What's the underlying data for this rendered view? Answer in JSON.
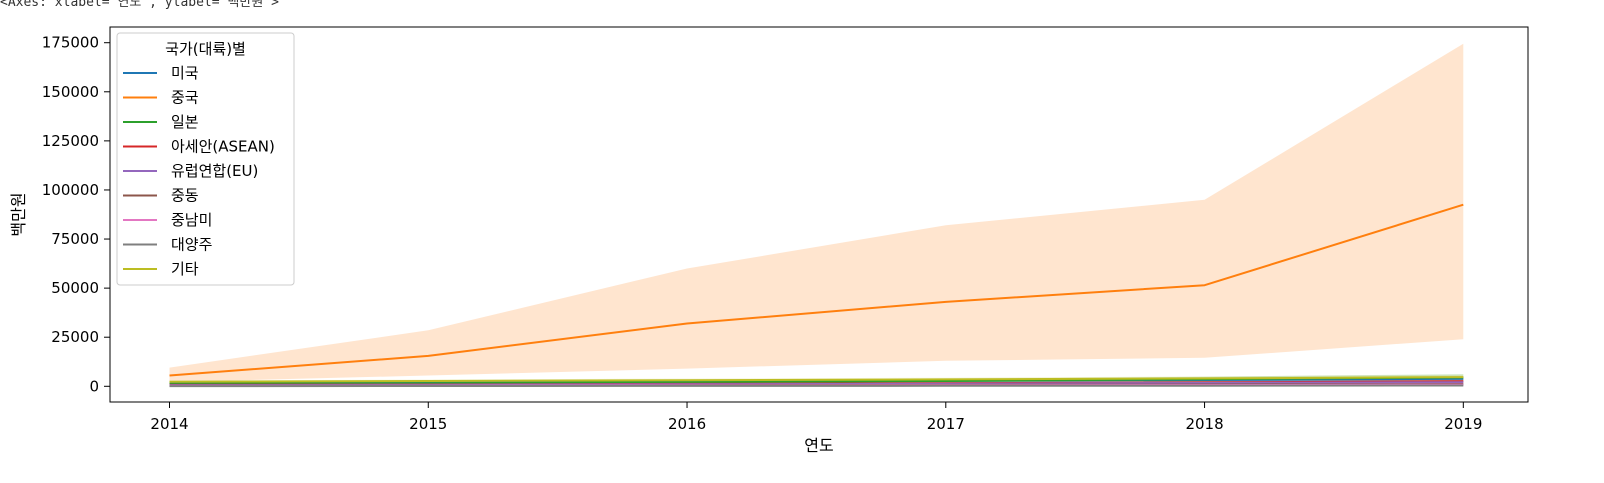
{
  "repr_text": "<Axes: xlabel='연도', ylabel='백만원'>",
  "chart_data": {
    "type": "line",
    "xlabel": "연도",
    "ylabel": "백만원",
    "x": [
      2014,
      2015,
      2016,
      2017,
      2018,
      2019
    ],
    "xlim": [
      2013.77,
      2019.25
    ],
    "ylim": [
      -8000,
      183000
    ],
    "yticks": [
      0,
      25000,
      50000,
      75000,
      100000,
      125000,
      150000,
      175000
    ],
    "grid": false,
    "legend": {
      "title": "국가(대륙)별",
      "position": "upper-left"
    },
    "series": [
      {
        "name": "미국",
        "color": "#1f77b4",
        "values": [
          1500,
          1900,
          2300,
          2800,
          3200,
          3800
        ],
        "ci_low": [
          1000,
          1300,
          1600,
          2000,
          2300,
          2700
        ],
        "ci_high": [
          2000,
          2500,
          3000,
          3600,
          4100,
          4900
        ]
      },
      {
        "name": "중국",
        "color": "#ff7f0e",
        "values": [
          5500,
          15500,
          32000,
          43000,
          51500,
          92500
        ],
        "ci_low": [
          2200,
          5500,
          9000,
          13000,
          14500,
          24000
        ],
        "ci_high": [
          9500,
          28500,
          60000,
          82000,
          95000,
          174500
        ]
      },
      {
        "name": "일본",
        "color": "#2ca02c",
        "values": [
          1300,
          1600,
          2100,
          2700,
          3600,
          4500
        ],
        "ci_low": [
          800,
          1000,
          1300,
          1700,
          2300,
          2900
        ],
        "ci_high": [
          1800,
          2200,
          2900,
          3700,
          4900,
          6200
        ]
      },
      {
        "name": "아세안(ASEAN)",
        "color": "#d62728",
        "values": [
          700,
          900,
          1200,
          1600,
          2000,
          2600
        ],
        "ci_low": [
          400,
          500,
          700,
          1000,
          1200,
          1600
        ],
        "ci_high": [
          1000,
          1300,
          1700,
          2200,
          2800,
          3600
        ]
      },
      {
        "name": "유럽연합(EU)",
        "color": "#9467bd",
        "values": [
          600,
          800,
          1000,
          1300,
          1700,
          2100
        ],
        "ci_low": [
          300,
          400,
          600,
          800,
          1000,
          1300
        ],
        "ci_high": [
          900,
          1200,
          1400,
          1800,
          2400,
          2900
        ]
      },
      {
        "name": "중동",
        "color": "#8c564b",
        "values": [
          300,
          400,
          500,
          700,
          900,
          1100
        ],
        "ci_low": [
          100,
          200,
          250,
          350,
          450,
          550
        ],
        "ci_high": [
          500,
          600,
          750,
          1050,
          1350,
          1650
        ]
      },
      {
        "name": "중남미",
        "color": "#e377c2",
        "values": [
          200,
          300,
          400,
          500,
          600,
          800
        ],
        "ci_low": [
          100,
          150,
          200,
          250,
          300,
          400
        ],
        "ci_high": [
          300,
          450,
          600,
          750,
          900,
          1200
        ]
      },
      {
        "name": "대양주",
        "color": "#7f7f7f",
        "values": [
          100,
          150,
          200,
          250,
          300,
          400
        ],
        "ci_low": [
          50,
          75,
          100,
          125,
          150,
          200
        ],
        "ci_high": [
          150,
          225,
          300,
          375,
          450,
          600
        ]
      },
      {
        "name": "기타",
        "color": "#bcbd22",
        "values": [
          2300,
          2700,
          3100,
          3500,
          4000,
          4700
        ],
        "ci_low": [
          1700,
          2000,
          2300,
          2600,
          3000,
          3500
        ],
        "ci_high": [
          2900,
          3400,
          3900,
          4400,
          5000,
          5900
        ]
      }
    ]
  }
}
